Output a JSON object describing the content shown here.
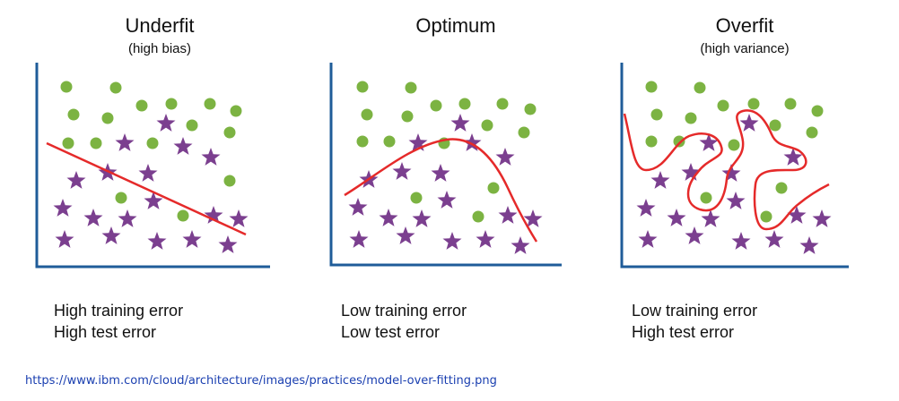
{
  "colors": {
    "dot": "#7cb342",
    "star": "#7b3f8f",
    "curve": "#e52a2a",
    "axis": "#1f5c99"
  },
  "panels": [
    {
      "title": "Underfit",
      "subtitle": "(high bias)",
      "caption_train": "High training error",
      "caption_test": "High test error",
      "curve_icon": "straight-line-curve"
    },
    {
      "title": "Optimum",
      "subtitle": "",
      "caption_train": "Low training error",
      "caption_test": "Low test error",
      "curve_icon": "smooth-arc-curve"
    },
    {
      "title": "Overfit",
      "subtitle": "(high variance)",
      "caption_train": "Low training error",
      "caption_test": "High test error",
      "curve_icon": "wiggly-curve"
    }
  ],
  "source_url": "https://www.ibm.com/cloud/architecture/images/practices/model-over-fitting.png"
}
